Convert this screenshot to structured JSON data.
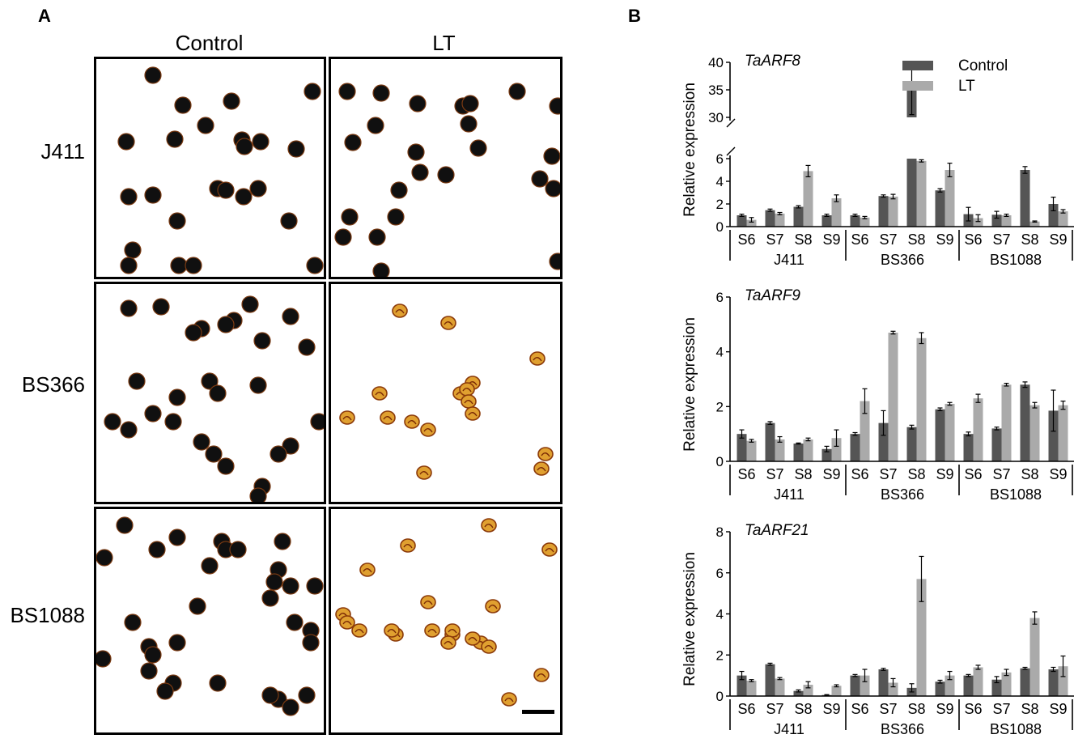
{
  "panel_a": {
    "letter": "A",
    "col_labels": [
      "Control",
      "LT"
    ],
    "row_labels": [
      "J411",
      "BS366",
      "BS1088"
    ],
    "grains": [
      {
        "style": "dark",
        "points": [
          [
            70,
            20
          ],
          [
            107,
            57
          ],
          [
            167,
            52
          ],
          [
            267,
            40
          ],
          [
            135,
            82
          ],
          [
            37,
            102
          ],
          [
            97,
            99
          ],
          [
            180,
            100
          ],
          [
            183,
            108
          ],
          [
            203,
            102
          ],
          [
            247,
            111
          ],
          [
            150,
            160
          ],
          [
            40,
            170
          ],
          [
            70,
            168
          ],
          [
            182,
            170
          ],
          [
            160,
            162
          ],
          [
            200,
            160
          ],
          [
            238,
            200
          ],
          [
            100,
            200
          ],
          [
            45,
            236
          ],
          [
            40,
            255
          ],
          [
            102,
            255
          ],
          [
            120,
            255
          ],
          [
            270,
            255
          ]
        ]
      },
      {
        "style": "dark",
        "points": [
          [
            20,
            40
          ],
          [
            62,
            42
          ],
          [
            107,
            55
          ],
          [
            163,
            58
          ],
          [
            172,
            55
          ],
          [
            230,
            40
          ],
          [
            280,
            58
          ],
          [
            55,
            82
          ],
          [
            170,
            80
          ],
          [
            27,
            103
          ],
          [
            105,
            115
          ],
          [
            182,
            110
          ],
          [
            273,
            120
          ],
          [
            110,
            140
          ],
          [
            142,
            143
          ],
          [
            258,
            148
          ],
          [
            84,
            162
          ],
          [
            275,
            160
          ],
          [
            23,
            195
          ],
          [
            80,
            195
          ],
          [
            15,
            220
          ],
          [
            57,
            220
          ],
          [
            280,
            250
          ],
          [
            62,
            262
          ]
        ]
      },
      {
        "style": "dark",
        "points": [
          [
            40,
            30
          ],
          [
            80,
            28
          ],
          [
            190,
            25
          ],
          [
            170,
            45
          ],
          [
            160,
            50
          ],
          [
            130,
            55
          ],
          [
            240,
            40
          ],
          [
            120,
            60
          ],
          [
            205,
            70
          ],
          [
            260,
            78
          ],
          [
            140,
            120
          ],
          [
            200,
            125
          ],
          [
            150,
            135
          ],
          [
            100,
            140
          ],
          [
            50,
            120
          ],
          [
            70,
            160
          ],
          [
            95,
            170
          ],
          [
            130,
            195
          ],
          [
            145,
            210
          ],
          [
            160,
            225
          ],
          [
            40,
            180
          ],
          [
            20,
            170
          ],
          [
            275,
            170
          ],
          [
            240,
            200
          ],
          [
            225,
            210
          ],
          [
            205,
            250
          ],
          [
            200,
            262
          ]
        ]
      },
      {
        "style": "orange",
        "points": [
          [
            85,
            33
          ],
          [
            145,
            48
          ],
          [
            255,
            92
          ],
          [
            60,
            135
          ],
          [
            175,
            122
          ],
          [
            160,
            135
          ],
          [
            168,
            130
          ],
          [
            170,
            145
          ],
          [
            175,
            160
          ],
          [
            100,
            170
          ],
          [
            120,
            180
          ],
          [
            70,
            165
          ],
          [
            20,
            165
          ],
          [
            265,
            210
          ],
          [
            260,
            228
          ],
          [
            115,
            233
          ]
        ]
      },
      {
        "style": "dark",
        "points": [
          [
            35,
            20
          ],
          [
            75,
            50
          ],
          [
            100,
            35
          ],
          [
            155,
            40
          ],
          [
            160,
            50
          ],
          [
            175,
            50
          ],
          [
            140,
            70
          ],
          [
            230,
            40
          ],
          [
            225,
            75
          ],
          [
            220,
            90
          ],
          [
            10,
            60
          ],
          [
            240,
            95
          ],
          [
            270,
            95
          ],
          [
            215,
            110
          ],
          [
            245,
            140
          ],
          [
            265,
            150
          ],
          [
            265,
            165
          ],
          [
            125,
            120
          ],
          [
            65,
            170
          ],
          [
            100,
            165
          ],
          [
            70,
            180
          ],
          [
            45,
            140
          ],
          [
            65,
            200
          ],
          [
            95,
            215
          ],
          [
            85,
            225
          ],
          [
            8,
            185
          ],
          [
            150,
            215
          ],
          [
            260,
            230
          ],
          [
            225,
            235
          ],
          [
            215,
            230
          ],
          [
            240,
            245
          ]
        ]
      },
      {
        "style": "orange",
        "points": [
          [
            95,
            45
          ],
          [
            195,
            20
          ],
          [
            270,
            50
          ],
          [
            45,
            75
          ],
          [
            35,
            150
          ],
          [
            15,
            130
          ],
          [
            20,
            140
          ],
          [
            80,
            155
          ],
          [
            120,
            115
          ],
          [
            200,
            120
          ],
          [
            125,
            150
          ],
          [
            150,
            155
          ],
          [
            75,
            150
          ],
          [
            185,
            165
          ],
          [
            195,
            170
          ],
          [
            150,
            150
          ],
          [
            145,
            165
          ],
          [
            175,
            160
          ],
          [
            260,
            205
          ],
          [
            220,
            235
          ]
        ]
      }
    ]
  },
  "panel_b": {
    "letter": "B",
    "ylabel": "Relative expression",
    "legend": [
      {
        "name": "Control",
        "color": "#555555"
      },
      {
        "name": "LT",
        "color": "#aaaaaa"
      }
    ],
    "stage_labels": [
      "S6",
      "S7",
      "S8",
      "S9"
    ],
    "groups": [
      "J411",
      "BS366",
      "BS1088"
    ]
  },
  "chart_data": [
    {
      "type": "bar",
      "title": "TaARF8",
      "ylabel": "Relative expression",
      "ylim": [
        0,
        40
      ],
      "axis_break": [
        6,
        30
      ],
      "yticks": [
        "0",
        "2",
        "4",
        "6",
        "30",
        "35",
        "40"
      ],
      "categories": [
        "S6",
        "S7",
        "S8",
        "S9",
        "S6",
        "S7",
        "S8",
        "S9",
        "S6",
        "S7",
        "S8",
        "S9"
      ],
      "groups": [
        "J411",
        "BS366",
        "BS1088"
      ],
      "series": [
        {
          "name": "Control",
          "values": [
            1.0,
            1.45,
            1.75,
            1.0,
            1.0,
            2.7,
            35.0,
            3.2,
            1.1,
            1.05,
            5.0,
            2.0
          ],
          "errors": [
            0.1,
            0.1,
            0.1,
            0.1,
            0.1,
            0.1,
            4.5,
            0.15,
            0.6,
            0.3,
            0.3,
            0.6
          ]
        },
        {
          "name": "LT",
          "values": [
            0.6,
            1.15,
            4.9,
            2.5,
            0.8,
            2.65,
            5.8,
            5.0,
            0.75,
            1.0,
            0.45,
            1.35
          ],
          "errors": [
            0.2,
            0.1,
            0.5,
            0.3,
            0.1,
            0.2,
            0.1,
            0.6,
            0.3,
            0.1,
            0.05,
            0.15
          ]
        }
      ]
    },
    {
      "type": "bar",
      "title": "TaARF9",
      "ylabel": "Relative expression",
      "ylim": [
        0,
        6
      ],
      "yticks": [
        "0",
        "2",
        "4",
        "6"
      ],
      "categories": [
        "S6",
        "S7",
        "S8",
        "S9",
        "S6",
        "S7",
        "S8",
        "S9",
        "S6",
        "S7",
        "S8",
        "S9"
      ],
      "groups": [
        "J411",
        "BS366",
        "BS1088"
      ],
      "series": [
        {
          "name": "Control",
          "values": [
            1.0,
            1.4,
            0.65,
            0.45,
            1.0,
            1.4,
            1.25,
            1.9,
            1.0,
            1.2,
            2.8,
            1.85
          ],
          "errors": [
            0.15,
            0.05,
            0.02,
            0.1,
            0.05,
            0.45,
            0.07,
            0.05,
            0.07,
            0.05,
            0.1,
            0.75
          ]
        },
        {
          "name": "LT",
          "values": [
            0.75,
            0.8,
            0.8,
            0.85,
            2.2,
            4.7,
            4.5,
            2.1,
            2.3,
            2.8,
            2.05,
            2.05
          ],
          "errors": [
            0.05,
            0.1,
            0.05,
            0.3,
            0.45,
            0.05,
            0.2,
            0.05,
            0.15,
            0.05,
            0.1,
            0.15
          ]
        }
      ]
    },
    {
      "type": "bar",
      "title": "TaARF21",
      "ylabel": "Relative expression",
      "ylim": [
        0,
        8
      ],
      "yticks": [
        "0",
        "2",
        "4",
        "6",
        "8"
      ],
      "categories": [
        "S6",
        "S7",
        "S8",
        "S9",
        "S6",
        "S7",
        "S8",
        "S9",
        "S6",
        "S7",
        "S8",
        "S9"
      ],
      "groups": [
        "J411",
        "BS366",
        "BS1088"
      ],
      "series": [
        {
          "name": "Control",
          "values": [
            1.0,
            1.55,
            0.25,
            0.05,
            1.0,
            1.3,
            0.4,
            0.7,
            1.0,
            0.8,
            1.35,
            1.3
          ],
          "errors": [
            0.2,
            0.05,
            0.05,
            0.02,
            0.05,
            0.05,
            0.2,
            0.07,
            0.05,
            0.15,
            0.05,
            0.1
          ]
        },
        {
          "name": "LT",
          "values": [
            0.75,
            0.85,
            0.55,
            0.5,
            1.0,
            0.65,
            5.7,
            1.0,
            1.4,
            1.15,
            3.8,
            1.45
          ],
          "errors": [
            0.05,
            0.05,
            0.15,
            0.05,
            0.3,
            0.2,
            1.1,
            0.2,
            0.1,
            0.15,
            0.3,
            0.5
          ]
        }
      ]
    }
  ]
}
